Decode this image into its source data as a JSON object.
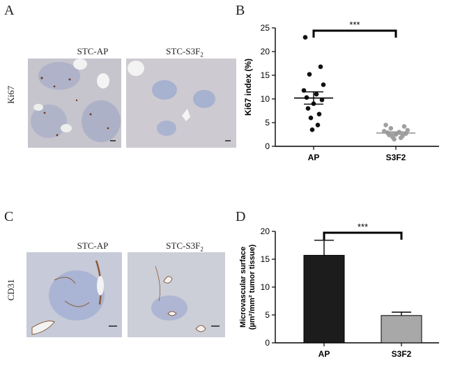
{
  "panels": {
    "A": {
      "letter": "A",
      "side_label": "Ki67",
      "left_title": "STC-AP",
      "right_title_main": "STC-S3F",
      "right_title_sub": "2"
    },
    "B": {
      "letter": "B"
    },
    "C": {
      "letter": "C",
      "side_label": "CD31",
      "left_title": "STC-AP",
      "right_title_main": "STC-S3F",
      "right_title_sub": "2"
    },
    "D": {
      "letter": "D"
    }
  },
  "colors": {
    "tissue_bg": "#c9c8cf",
    "stain_blue": "#8e9ec8",
    "stain_brown": "#8a5a3a",
    "bar_ap": "#1c1c1c",
    "bar_s3f2": "#a8a8a8",
    "scatter_s3f2": "#a0a0a0"
  },
  "chart_data": [
    {
      "type": "scatter",
      "ylabel": "Ki67 index (%)",
      "ylim": [
        0,
        25
      ],
      "yticks": [
        "0",
        "5",
        "10",
        "15",
        "20",
        "25"
      ],
      "categories": [
        "AP",
        "S3F2"
      ],
      "series": [
        {
          "values": [
            23.0,
            16.8,
            15.2,
            13.0,
            11.8,
            11.0,
            10.3,
            9.8,
            9.0,
            8.0,
            6.8,
            6.0,
            4.5,
            3.5
          ]
        },
        {
          "values": [
            4.5,
            4.2,
            3.8,
            3.4,
            3.2,
            3.0,
            2.9,
            2.7,
            2.5,
            2.4,
            2.2,
            2.0,
            1.8,
            1.5
          ]
        }
      ],
      "means": [
        10.2,
        2.8
      ],
      "sem": [
        1.3,
        0.25
      ],
      "significance": "***"
    },
    {
      "type": "bar",
      "ylabel_line1": "Microvascular surface",
      "ylabel_line2": "(µm²/mm² tumor tissue)",
      "ylim": [
        0,
        20
      ],
      "yticks": [
        "0",
        "5",
        "10",
        "15",
        "20"
      ],
      "categories": [
        "AP",
        "S3F2"
      ],
      "values": [
        15.7,
        4.9
      ],
      "errors": [
        2.7,
        0.6
      ],
      "significance": "***"
    }
  ]
}
